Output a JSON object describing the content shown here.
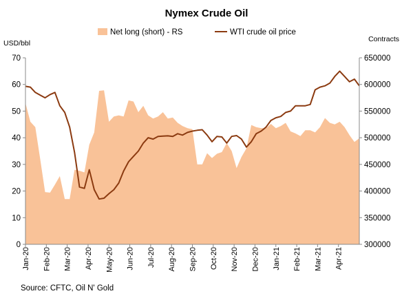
{
  "chart_data": {
    "type": "line",
    "title": "Nymex Crude Oil",
    "source": "Source: CFTC, Oil N' Gold",
    "left_axis": {
      "unit_label": "USD/bbl",
      "ylim": [
        0,
        70
      ],
      "ticks": [
        0,
        10,
        20,
        30,
        40,
        50,
        60,
        70
      ]
    },
    "right_axis": {
      "unit_label": "Contracts",
      "ylim": [
        300000,
        650000
      ],
      "ticks": [
        300000,
        350000,
        400000,
        450000,
        500000,
        550000,
        600000,
        650000
      ]
    },
    "x_tick_labels": [
      "Jan-20",
      "Feb-20",
      "Mar-20",
      "Apr-20",
      "May-20",
      "Jun-20",
      "Jul-20",
      "Aug-20",
      "Sep-20",
      "Oct-20",
      "Nov-20",
      "Dec-20",
      "Jan-21",
      "Feb-21",
      "Mar-21",
      "Apr-21"
    ],
    "series": [
      {
        "name": "Net long (short) - RS",
        "type": "area",
        "axis": "right",
        "color": "#f9c298",
        "values": [
          565000,
          530000,
          520000,
          460000,
          398000,
          397000,
          412000,
          428000,
          385000,
          385000,
          440000,
          438000,
          435000,
          487000,
          510000,
          588000,
          589000,
          530000,
          540000,
          542000,
          540000,
          570000,
          568000,
          548000,
          560000,
          542000,
          536000,
          540000,
          548000,
          536000,
          538000,
          528000,
          522000,
          518000,
          516000,
          450000,
          450000,
          471000,
          462000,
          470000,
          473000,
          490000,
          475000,
          443000,
          464000,
          480000,
          524000,
          520000,
          518000,
          518000,
          526000,
          518000,
          522000,
          528000,
          512000,
          508000,
          503000,
          514000,
          514000,
          510000,
          520000,
          537000,
          528000,
          525000,
          530000,
          520000,
          505000,
          492000,
          499000
        ]
      },
      {
        "name": "WTI crude oil price",
        "type": "line",
        "axis": "left",
        "color": "#8b3a10",
        "values": [
          59.3,
          59.0,
          57.0,
          56.0,
          55.0,
          56.2,
          57.0,
          52.0,
          49.5,
          44.0,
          34.5,
          21.5,
          21.0,
          28.0,
          20.5,
          17.0,
          17.3,
          19.0,
          20.5,
          23.0,
          27.5,
          31.0,
          33.0,
          35.0,
          38.0,
          40.0,
          39.5,
          40.5,
          40.6,
          40.7,
          40.5,
          41.5,
          41.0,
          42.0,
          42.5,
          42.8,
          43.0,
          41.0,
          38.5,
          40.5,
          40.3,
          38.0,
          40.5,
          40.8,
          39.5,
          36.5,
          38.5,
          41.5,
          42.5,
          44.0,
          46.5,
          47.5,
          48.0,
          49.5,
          50.0,
          52.0,
          52.0,
          52.0,
          52.5,
          58.0,
          59.0,
          59.5,
          60.5,
          63.0,
          65.0,
          63.0,
          61.0,
          62.0,
          59.5
        ]
      }
    ]
  }
}
